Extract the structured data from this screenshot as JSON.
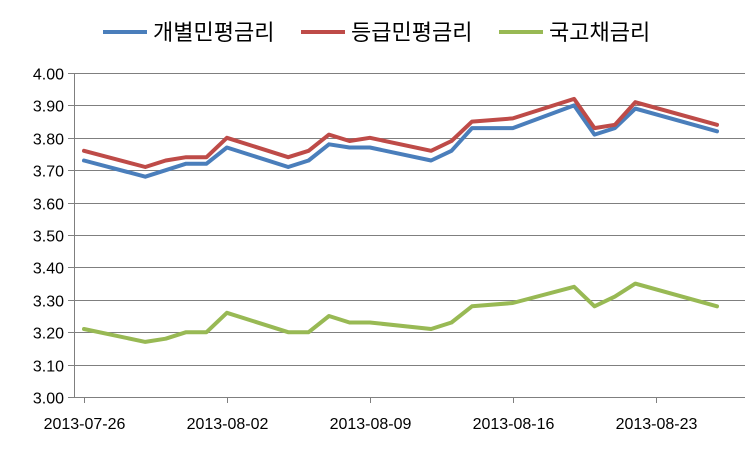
{
  "chart_data": {
    "type": "line",
    "title": "",
    "xlabel": "",
    "ylabel": "",
    "ylim": [
      3.0,
      4.0
    ],
    "ytick_step": 0.1,
    "yticks": [
      "3.00",
      "3.10",
      "3.20",
      "3.30",
      "3.40",
      "3.50",
      "3.60",
      "3.70",
      "3.80",
      "3.90",
      "4.00"
    ],
    "grid": true,
    "legend": "top",
    "x": [
      "2013-07-26",
      "2013-07-29",
      "2013-07-30",
      "2013-07-31",
      "2013-08-01",
      "2013-08-02",
      "2013-08-05",
      "2013-08-06",
      "2013-08-07",
      "2013-08-08",
      "2013-08-09",
      "2013-08-12",
      "2013-08-13",
      "2013-08-14",
      "2013-08-16",
      "2013-08-19",
      "2013-08-20",
      "2013-08-21",
      "2013-08-22",
      "2013-08-26"
    ],
    "x_tick_labels": [
      "2013-07-26",
      "2013-08-02",
      "2013-08-09",
      "2013-08-16",
      "2013-08-23"
    ],
    "series": [
      {
        "name": "개별민평금리",
        "color": "#4a7ebb",
        "values": [
          3.73,
          3.68,
          3.7,
          3.72,
          3.72,
          3.77,
          3.71,
          3.73,
          3.78,
          3.77,
          3.77,
          3.73,
          3.76,
          3.83,
          3.83,
          3.9,
          3.81,
          3.83,
          3.89,
          3.82
        ]
      },
      {
        "name": "등급민평금리",
        "color": "#be4b48",
        "values": [
          3.76,
          3.71,
          3.73,
          3.74,
          3.74,
          3.8,
          3.74,
          3.76,
          3.81,
          3.79,
          3.8,
          3.76,
          3.79,
          3.85,
          3.86,
          3.92,
          3.83,
          3.84,
          3.91,
          3.84
        ]
      },
      {
        "name": "국고채금리",
        "color": "#98b954",
        "values": [
          3.21,
          3.17,
          3.18,
          3.2,
          3.2,
          3.26,
          3.2,
          3.2,
          3.25,
          3.23,
          3.23,
          3.21,
          3.23,
          3.28,
          3.29,
          3.34,
          3.28,
          3.31,
          3.35,
          3.28
        ]
      }
    ]
  }
}
